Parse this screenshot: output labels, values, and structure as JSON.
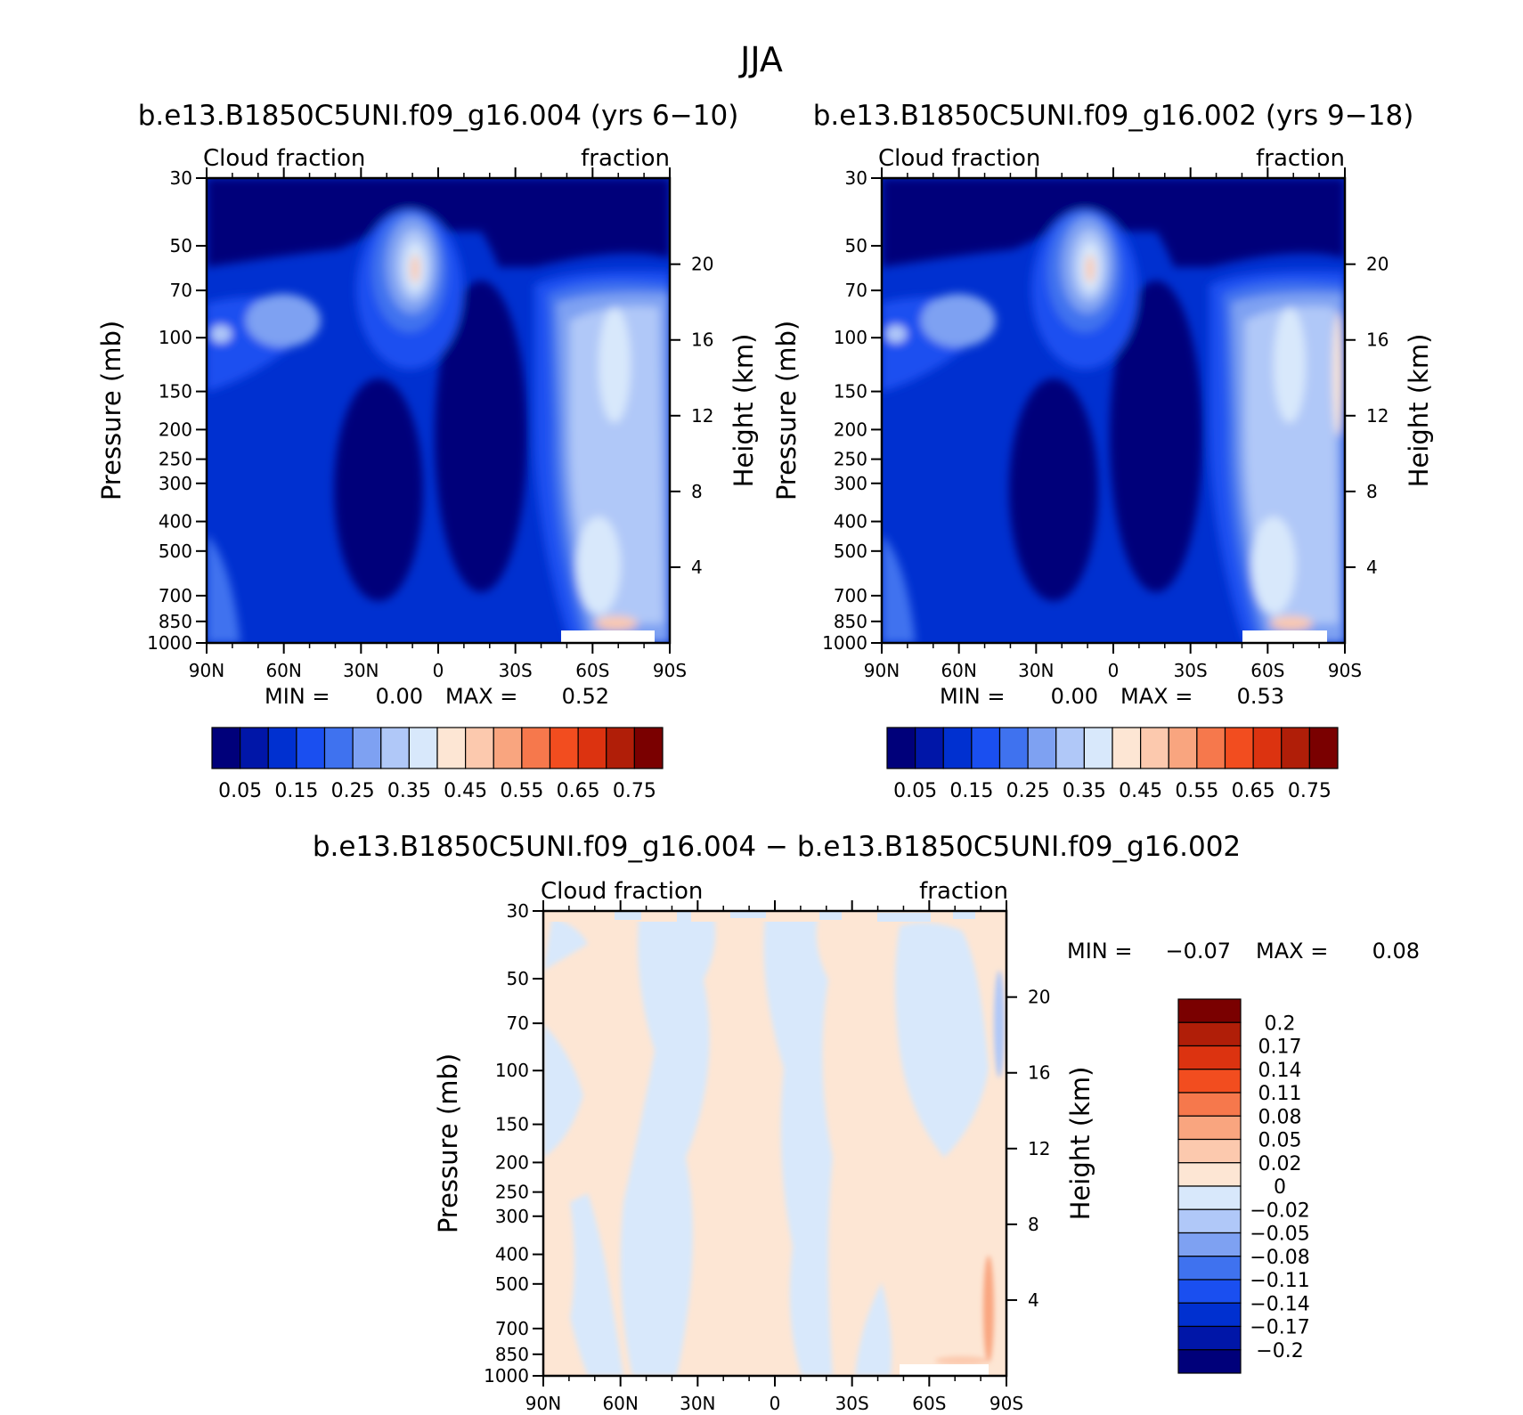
{
  "figure": {
    "title": "JJA"
  },
  "colors": {
    "abs_scale": [
      "#00007a",
      "#0016a8",
      "#0030d0",
      "#1a4ff0",
      "#3f72ef",
      "#7ea1f2",
      "#b0c8f8",
      "#d8e8fb",
      "#fde6d4",
      "#fcc9ae",
      "#f9a57f",
      "#f6784c",
      "#f24d1f",
      "#dc3310",
      "#b01e08",
      "#7a0000"
    ],
    "diff_scale": [
      "#00007a",
      "#0016a8",
      "#0030d0",
      "#1a4ff0",
      "#3f72ef",
      "#7ea1f2",
      "#b0c8f8",
      "#d8e8fb",
      "#fde6d4",
      "#fcc9ae",
      "#f9a57f",
      "#f6784c",
      "#f24d1f",
      "#dc3310",
      "#b01e08",
      "#7a0000"
    ]
  },
  "chart_data": [
    {
      "type": "heatmap",
      "title": "b.e13.B1850C5UNI.f09_g16.004 (yrs 6−10)",
      "left_label": "Cloud fraction",
      "right_label": "fraction",
      "ylabel": "Pressure (mb)",
      "y2label": "Height (km)",
      "x_ticks": [
        "90N",
        "60N",
        "30N",
        "0",
        "30S",
        "60S",
        "90S"
      ],
      "y_ticks": [
        "30",
        "50",
        "70",
        "100",
        "150",
        "200",
        "250",
        "300",
        "400",
        "500",
        "700",
        "850",
        "1000"
      ],
      "y_tick_values": [
        30,
        50,
        70,
        100,
        150,
        200,
        250,
        300,
        400,
        500,
        700,
        850,
        1000
      ],
      "y2_ticks": [
        "20",
        "16",
        "12",
        "8",
        "4"
      ],
      "y2_tick_values": [
        20,
        16,
        12,
        8,
        4
      ],
      "min_label": "MIN =",
      "min_value": "0.00",
      "max_label": "MAX =",
      "max_value": "0.52",
      "colorbar_labels": [
        "0.05",
        "0.15",
        "0.25",
        "0.35",
        "0.45",
        "0.55",
        "0.65",
        "0.75"
      ]
    },
    {
      "type": "heatmap",
      "title": "b.e13.B1850C5UNI.f09_g16.002 (yrs 9−18)",
      "left_label": "Cloud fraction",
      "right_label": "fraction",
      "ylabel": "Pressure (mb)",
      "y2label": "Height (km)",
      "x_ticks": [
        "90N",
        "60N",
        "30N",
        "0",
        "30S",
        "60S",
        "90S"
      ],
      "y_ticks": [
        "30",
        "50",
        "70",
        "100",
        "150",
        "200",
        "250",
        "300",
        "400",
        "500",
        "700",
        "850",
        "1000"
      ],
      "y_tick_values": [
        30,
        50,
        70,
        100,
        150,
        200,
        250,
        300,
        400,
        500,
        700,
        850,
        1000
      ],
      "y2_ticks": [
        "20",
        "16",
        "12",
        "8",
        "4"
      ],
      "y2_tick_values": [
        20,
        16,
        12,
        8,
        4
      ],
      "min_label": "MIN =",
      "min_value": "0.00",
      "max_label": "MAX =",
      "max_value": "0.53",
      "colorbar_labels": [
        "0.05",
        "0.15",
        "0.25",
        "0.35",
        "0.45",
        "0.55",
        "0.65",
        "0.75"
      ]
    },
    {
      "type": "heatmap",
      "title": "b.e13.B1850C5UNI.f09_g16.004 − b.e13.B1850C5UNI.f09_g16.002",
      "left_label": "Cloud fraction",
      "right_label": "fraction",
      "ylabel": "Pressure (mb)",
      "y2label": "Height (km)",
      "x_ticks": [
        "90N",
        "60N",
        "30N",
        "0",
        "30S",
        "60S",
        "90S"
      ],
      "y_ticks": [
        "30",
        "50",
        "70",
        "100",
        "150",
        "200",
        "250",
        "300",
        "400",
        "500",
        "700",
        "850",
        "1000"
      ],
      "y_tick_values": [
        30,
        50,
        70,
        100,
        150,
        200,
        250,
        300,
        400,
        500,
        700,
        850,
        1000
      ],
      "y2_ticks": [
        "20",
        "16",
        "12",
        "8",
        "4"
      ],
      "y2_tick_values": [
        20,
        16,
        12,
        8,
        4
      ],
      "min_label": "MIN =",
      "min_value": "−0.07",
      "max_label": "MAX =",
      "max_value": "0.08",
      "colorbar_labels": [
        "0.2",
        "0.17",
        "0.14",
        "0.11",
        "0.08",
        "0.05",
        "0.02",
        "0",
        "−0.02",
        "−0.05",
        "−0.08",
        "−0.11",
        "−0.14",
        "−0.17",
        "−0.2"
      ]
    }
  ]
}
